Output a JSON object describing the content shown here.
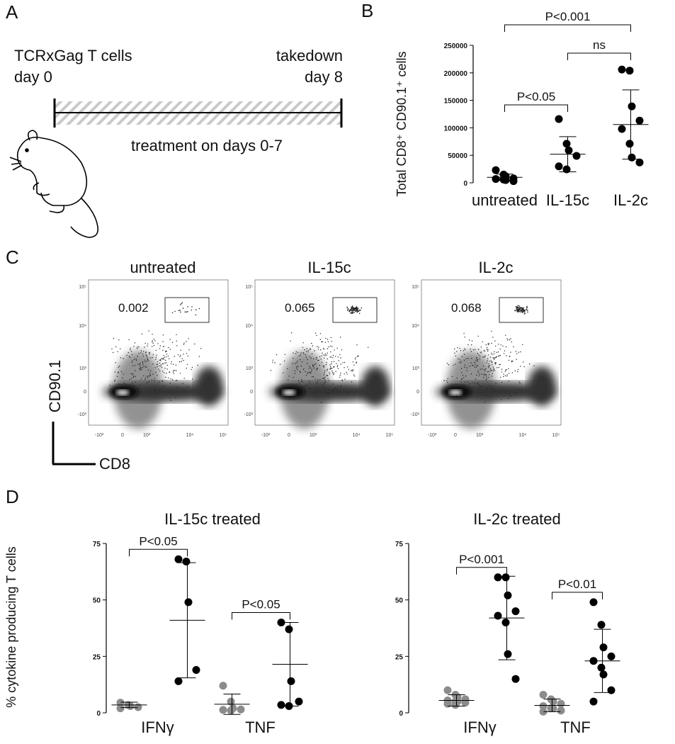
{
  "panel_labels": [
    "A",
    "B",
    "C",
    "D"
  ],
  "schematic": {
    "start_label": [
      "TCRxGag T cells",
      "day 0"
    ],
    "end_label": [
      "takedown",
      "day 8"
    ],
    "treatment": "treatment on days 0-7"
  },
  "flow": {
    "y_axis": "CD90.1",
    "x_axis": "CD8",
    "yticks": [
      "10⁵",
      "10⁴",
      "10³",
      "0",
      "-10³"
    ],
    "xticks": [
      "-10³",
      "0",
      "10³",
      "10⁴",
      "10⁵"
    ],
    "plots": [
      {
        "title": "untreated",
        "gate": "0.002"
      },
      {
        "title": "IL-15c",
        "gate": "0.065"
      },
      {
        "title": "IL-2c",
        "gate": "0.068"
      }
    ]
  },
  "chart_data": [
    {
      "type": "dot",
      "ylabel": "Total CD8⁺ CD90.1⁺ cells",
      "categories": [
        "untreated",
        "IL-15c",
        "IL-2c"
      ],
      "ylim": [
        0,
        250000
      ],
      "yticks": [
        0,
        50000,
        100000,
        150000,
        200000,
        250000
      ],
      "series": [
        {
          "color": "#000000",
          "values": [
            [
              23000,
              15000,
              12000,
              8000,
              7000,
              6000,
              5000,
              3000
            ],
            [
              116000,
              71000,
              59000,
              49000,
              30000,
              24500
            ],
            [
              206000,
              204000,
              139000,
              113000,
              98000,
              71000,
              46000,
              37000
            ]
          ],
          "means": [
            10000,
            52000,
            106000
          ],
          "sds": [
            6000,
            32000,
            63000
          ]
        }
      ],
      "brackets": [
        "P<0.05",
        "ns",
        "P<0.001"
      ]
    },
    {
      "type": "dot",
      "title": "IL-15c treated",
      "ylabel": "% cytokine producing T cells",
      "categories": [
        "IFNγ",
        "TNF"
      ],
      "ylim": [
        0,
        75
      ],
      "yticks": [
        0,
        25,
        50,
        75
      ],
      "series": [
        {
          "color": "#8c8c8c",
          "values": [
            [
              4.5,
              3.5,
              3,
              2.5,
              2
            ],
            [
              12,
              5,
              2,
              1.5,
              1.3,
              1
            ]
          ],
          "means": [
            3.5,
            3.8
          ],
          "sds": [
            1.2,
            4.5
          ]
        },
        {
          "color": "#000000",
          "values": [
            [
              68,
              67,
              49,
              19,
              14
            ],
            [
              40,
              37,
              14,
              5,
              3.5,
              3
            ]
          ],
          "means": [
            41,
            21.5
          ],
          "sds": [
            25.5,
            18.5
          ]
        }
      ],
      "brackets": [
        "P<0.05",
        "P<0.05"
      ]
    },
    {
      "type": "dot",
      "title": "IL-2c treated",
      "categories": [
        "IFNγ",
        "TNF"
      ],
      "ylim": [
        0,
        75
      ],
      "yticks": [
        0,
        25,
        50,
        75
      ],
      "series": [
        {
          "color": "#8c8c8c",
          "values": [
            [
              10,
              8,
              7,
              6,
              5.5,
              5,
              5,
              4.5,
              4,
              3.5
            ],
            [
              8,
              6,
              5,
              4,
              3,
              2,
              2,
              1,
              0.5
            ]
          ],
          "means": [
            5.5,
            3.3
          ],
          "sds": [
            2.5,
            2.8
          ]
        },
        {
          "color": "#000000",
          "values": [
            [
              60,
              60,
              52,
              45,
              43,
              40,
              26,
              15
            ],
            [
              49,
              39,
              29,
              25,
              23,
              20,
              17,
              10,
              5
            ]
          ],
          "means": [
            42,
            23
          ],
          "sds": [
            18.5,
            14
          ]
        }
      ],
      "brackets": [
        "P<0.001",
        "P<0.01"
      ]
    }
  ]
}
